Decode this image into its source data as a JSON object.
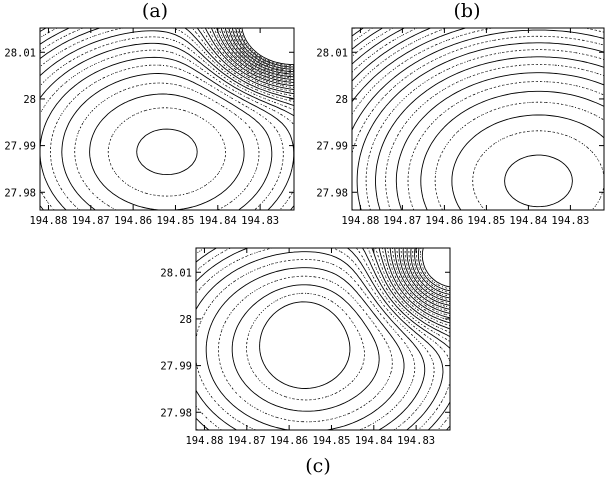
{
  "chart_data": [
    {
      "type": "contour",
      "panel": "(a)",
      "xlabel": "",
      "ylabel": "",
      "x_ticks": [
        "194.88",
        "194.87",
        "194.86",
        "194.85",
        "194.84",
        "194.83"
      ],
      "y_ticks": [
        "28.01",
        "28",
        "27.99",
        "27.98"
      ],
      "xlim": [
        194.882,
        194.822
      ],
      "ylim": [
        27.9762,
        28.0152
      ],
      "grid": false,
      "line_styles": [
        "solid",
        "dotted"
      ]
    },
    {
      "type": "contour",
      "panel": "(b)",
      "xlabel": "",
      "ylabel": "",
      "x_ticks": [
        "194.88",
        "194.87",
        "194.86",
        "194.85",
        "194.84",
        "194.83"
      ],
      "y_ticks": [
        "28.01",
        "28",
        "27.99",
        "27.98"
      ],
      "xlim": [
        194.882,
        194.822
      ],
      "ylim": [
        27.9762,
        28.0152
      ],
      "grid": false,
      "line_styles": [
        "solid",
        "dotted"
      ]
    },
    {
      "type": "contour",
      "panel": "(c)",
      "xlabel": "",
      "ylabel": "",
      "x_ticks": [
        "194.88",
        "194.87",
        "194.86",
        "194.85",
        "194.84",
        "194.83"
      ],
      "y_ticks": [
        "28.01",
        "28",
        "27.99",
        "27.98"
      ],
      "xlim": [
        194.882,
        194.822
      ],
      "ylim": [
        27.9762,
        28.0152
      ],
      "grid": false,
      "line_styles": [
        "solid",
        "dotted"
      ]
    }
  ],
  "labels": {
    "a": "(a)",
    "b": "(b)",
    "c": "(c)"
  }
}
